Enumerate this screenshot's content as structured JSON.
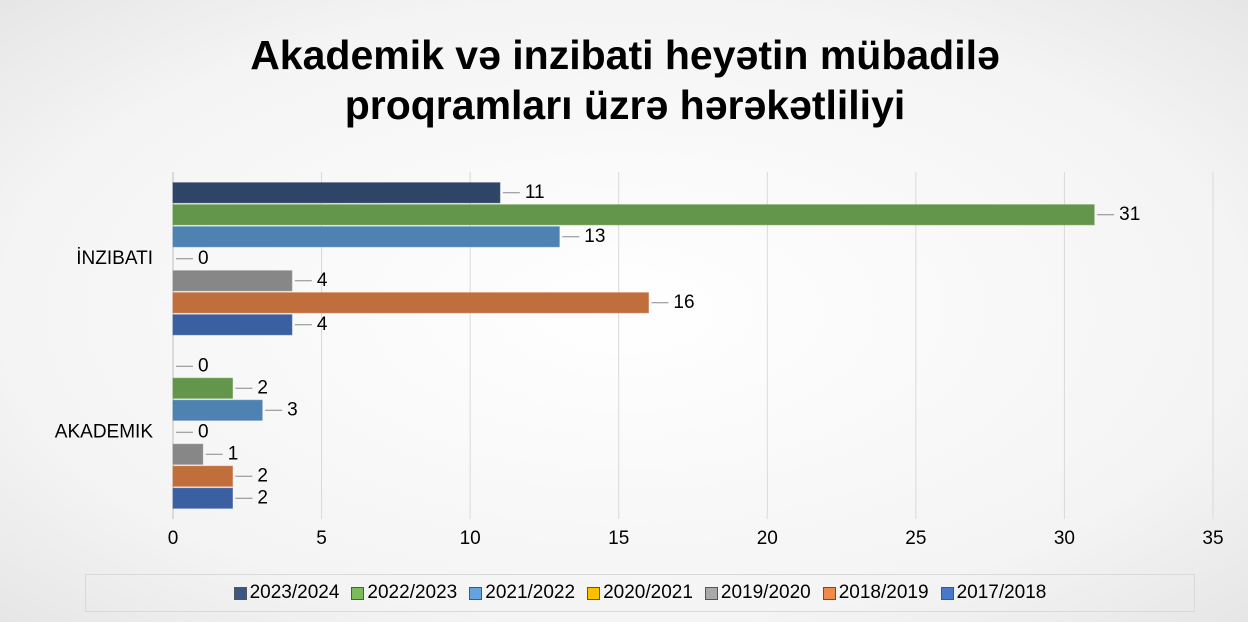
{
  "chart_data": {
    "type": "hbar",
    "title": "Akademik və inzibati heyətin mübadilə proqramları üzrə hərəkətliliyi",
    "categories": [
      "AKADEMIK",
      "İNZIBATI"
    ],
    "series": [
      {
        "name": "2023/2024",
        "color": "#3b5682",
        "values": [
          0,
          11
        ]
      },
      {
        "name": "2022/2023",
        "color": "#7cbb5c",
        "values": [
          2,
          31
        ]
      },
      {
        "name": "2021/2022",
        "color": "#62a3e0",
        "values": [
          3,
          13
        ]
      },
      {
        "name": "2020/2021",
        "color": "#ffc000",
        "values": [
          0,
          0
        ]
      },
      {
        "name": "2019/2020",
        "color": "#a9a9a9",
        "values": [
          1,
          4
        ]
      },
      {
        "name": "2018/2019",
        "color": "#f08a4b",
        "values": [
          2,
          16
        ]
      },
      {
        "name": "2017/2018",
        "color": "#4a78c9",
        "values": [
          2,
          4
        ]
      }
    ],
    "xlim": [
      0,
      35
    ],
    "xticks": [
      0,
      5,
      10,
      15,
      20,
      25,
      30,
      35
    ],
    "grid": true,
    "legend": "bottom"
  }
}
